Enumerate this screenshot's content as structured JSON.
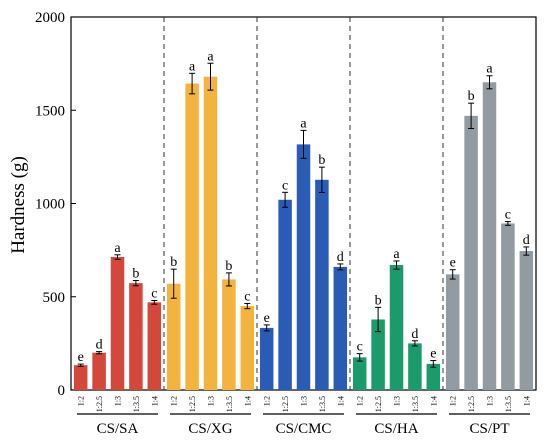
{
  "chart_data": {
    "type": "bar",
    "ylabel": "Hardness (g)",
    "ylim": [
      0,
      2000
    ],
    "yticks": [
      0,
      500,
      1000,
      1500,
      2000
    ],
    "grid": false,
    "groups": [
      {
        "name": "CS/SA",
        "color": "#d4473b",
        "categories": [
          "1:2",
          "1:2.5",
          "1:3",
          "1:3.5",
          "1:4"
        ],
        "values": [
          133,
          200,
          713,
          573,
          470
        ],
        "errors": [
          6,
          6,
          12,
          14,
          10
        ],
        "letters": [
          "e",
          "d",
          "a",
          "b",
          "c"
        ]
      },
      {
        "name": "CS/XG",
        "color": "#f2b33f",
        "categories": [
          "1:2",
          "1:2.5",
          "1:3",
          "1:3.5",
          "1:4"
        ],
        "values": [
          570,
          1643,
          1680,
          593,
          450
        ],
        "errors": [
          78,
          55,
          72,
          35,
          14
        ],
        "letters": [
          "b",
          "a",
          "a",
          "b",
          "c"
        ]
      },
      {
        "name": "CS/CMC",
        "color": "#2b5cb5",
        "categories": [
          "1:2",
          "1:2.5",
          "1:3",
          "1:3.5",
          "1:4"
        ],
        "values": [
          333,
          1020,
          1317,
          1127,
          660
        ],
        "errors": [
          16,
          40,
          75,
          68,
          16
        ],
        "letters": [
          "e",
          "c",
          "a",
          "b",
          "d"
        ]
      },
      {
        "name": "CS/HA",
        "color": "#1b9a6c",
        "categories": [
          "1:2",
          "1:2.5",
          "1:3",
          "1:3.5",
          "1:4"
        ],
        "values": [
          175,
          378,
          670,
          250,
          140
        ],
        "errors": [
          20,
          65,
          22,
          14,
          18
        ],
        "letters": [
          "c",
          "b",
          "a",
          "d",
          "e"
        ]
      },
      {
        "name": "CS/PT",
        "color": "#929aa2",
        "categories": [
          "1:2",
          "1:2.5",
          "1:3",
          "1:3.5",
          "1:4"
        ],
        "values": [
          620,
          1470,
          1650,
          893,
          745
        ],
        "errors": [
          25,
          68,
          35,
          10,
          22
        ],
        "letters": [
          "e",
          "b",
          "a",
          "c",
          "d"
        ]
      }
    ]
  }
}
